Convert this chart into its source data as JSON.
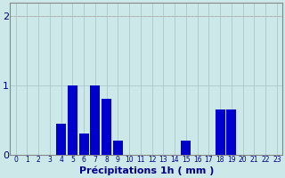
{
  "categories": [
    0,
    1,
    2,
    3,
    4,
    5,
    6,
    7,
    8,
    9,
    10,
    11,
    12,
    13,
    14,
    15,
    16,
    17,
    18,
    19,
    20,
    21,
    22,
    23
  ],
  "values": [
    0,
    0,
    0,
    0,
    0.45,
    1.0,
    0.3,
    1.0,
    0.8,
    0.2,
    0,
    0,
    0,
    0,
    0,
    0.2,
    0,
    0,
    0.65,
    0.65,
    0,
    0,
    0,
    0
  ],
  "bar_color": "#0000cc",
  "background_color": "#cce8e8",
  "grid_color": "#aac8c8",
  "xlabel": "Précipitations 1h ( mm )",
  "ylim": [
    0,
    2.2
  ],
  "yticks": [
    0,
    1,
    2
  ],
  "xlim": [
    -0.5,
    23.5
  ],
  "xlabel_fontsize": 8,
  "xtick_fontsize": 5.5,
  "ytick_fontsize": 8,
  "tick_color": "#00008b",
  "spine_color": "#888888",
  "grid_linewidth": 0.6
}
